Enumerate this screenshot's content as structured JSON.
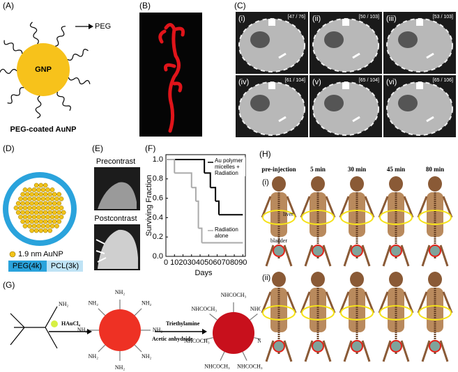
{
  "panel_labels": [
    "(A)",
    "(B)",
    "(C)",
    "(D)",
    "(E)",
    "(F)",
    "(G)",
    "(H)"
  ],
  "panel_a": {
    "peg": "PEG",
    "core": "GNP",
    "caption": "PEG-coated AuNP"
  },
  "panel_c": {
    "subpanels": [
      {
        "label": "(i)",
        "slice": "[47 / 76]"
      },
      {
        "label": "(ii)",
        "slice": "[50 / 103]"
      },
      {
        "label": "(iii)",
        "slice": "[53 / 103]"
      },
      {
        "label": "(iv)",
        "slice": "[61 / 104]"
      },
      {
        "label": "(v)",
        "slice": "[65 / 104]"
      },
      {
        "label": "(vi)",
        "slice": "[65 / 106]"
      }
    ]
  },
  "panel_d": {
    "legend": "1.9 nm AuNP",
    "shell": "PEG(4k)",
    "core": "PCL(3k)"
  },
  "panel_e": {
    "top": "Precontrast",
    "bottom": "Postcontrast"
  },
  "chart_data": {
    "type": "line",
    "xlabel": "Days",
    "ylabel": "Surviving Fraction",
    "xlim": [
      0,
      93
    ],
    "ylim": [
      0,
      1.05
    ],
    "xticks": [
      0,
      10,
      20,
      30,
      40,
      50,
      60,
      70,
      80,
      90
    ],
    "yticks": [
      {
        "value": 0,
        "label": "0.0"
      },
      0.2,
      0.4,
      0.6,
      0.8,
      {
        "value": 1,
        "label": "1.0"
      }
    ],
    "series": [
      {
        "name": "Au polymer micelles + Radiation",
        "color": "#000000",
        "x": [
          0,
          45,
          52,
          58,
          62,
          90
        ],
        "values": [
          1.0,
          0.86,
          0.71,
          0.57,
          0.43,
          0.43
        ]
      },
      {
        "name": "Radiation alone",
        "color": "#aaaaaa",
        "x": [
          0,
          10,
          30,
          35,
          38,
          42,
          90
        ],
        "values": [
          1.0,
          0.86,
          0.71,
          0.57,
          0.29,
          0.14,
          0.14
        ]
      }
    ]
  },
  "panel_g": {
    "amine": "NH₂",
    "gold_salt": "HAuCl₄",
    "base": "Triethylamine",
    "anhydride": "Acetic anhydride",
    "acetamide": "NHCOCH₃"
  },
  "panel_h": {
    "times": [
      "pre-injection",
      "5 min",
      "30 min",
      "45 min",
      "80 min"
    ],
    "rows": [
      "(i)",
      "(ii)"
    ],
    "liver": "liver",
    "bladder": "bladder"
  }
}
